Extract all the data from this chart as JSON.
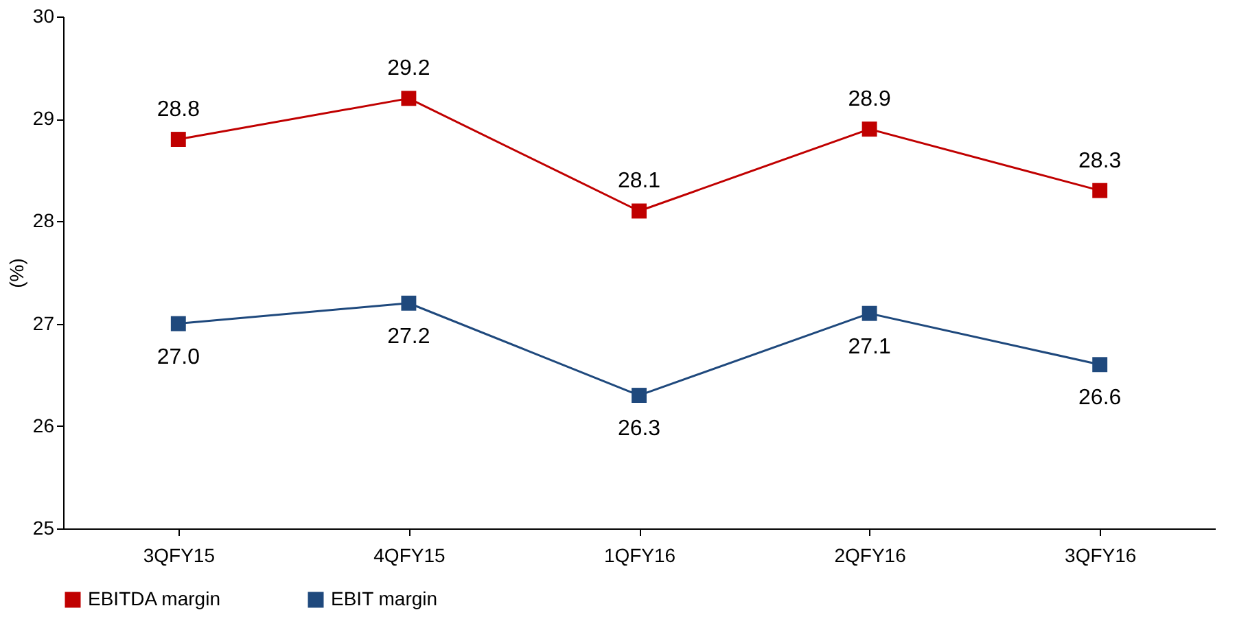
{
  "chart_data": {
    "type": "line",
    "ylabel": "(%)",
    "categories": [
      "3QFY15",
      "4QFY15",
      "1QFY16",
      "2QFY16",
      "3QFY16"
    ],
    "series": [
      {
        "name": "EBITDA margin",
        "color": "#c00000",
        "values": [
          28.8,
          29.2,
          28.1,
          28.9,
          28.3
        ],
        "value_labels": [
          "28.8",
          "29.2",
          "28.1",
          "28.9",
          "28.3"
        ]
      },
      {
        "name": "EBIT margin",
        "color": "#1f497d",
        "values": [
          27.0,
          27.2,
          26.3,
          27.1,
          26.6
        ],
        "value_labels": [
          "27.0",
          "27.2",
          "26.3",
          "27.1",
          "26.6"
        ]
      }
    ],
    "ylim": [
      25,
      30
    ],
    "yticks": [
      25,
      26,
      27,
      28,
      29,
      30
    ],
    "grid": false,
    "legend": "bottom",
    "marker": "square",
    "line_style": "solid"
  }
}
